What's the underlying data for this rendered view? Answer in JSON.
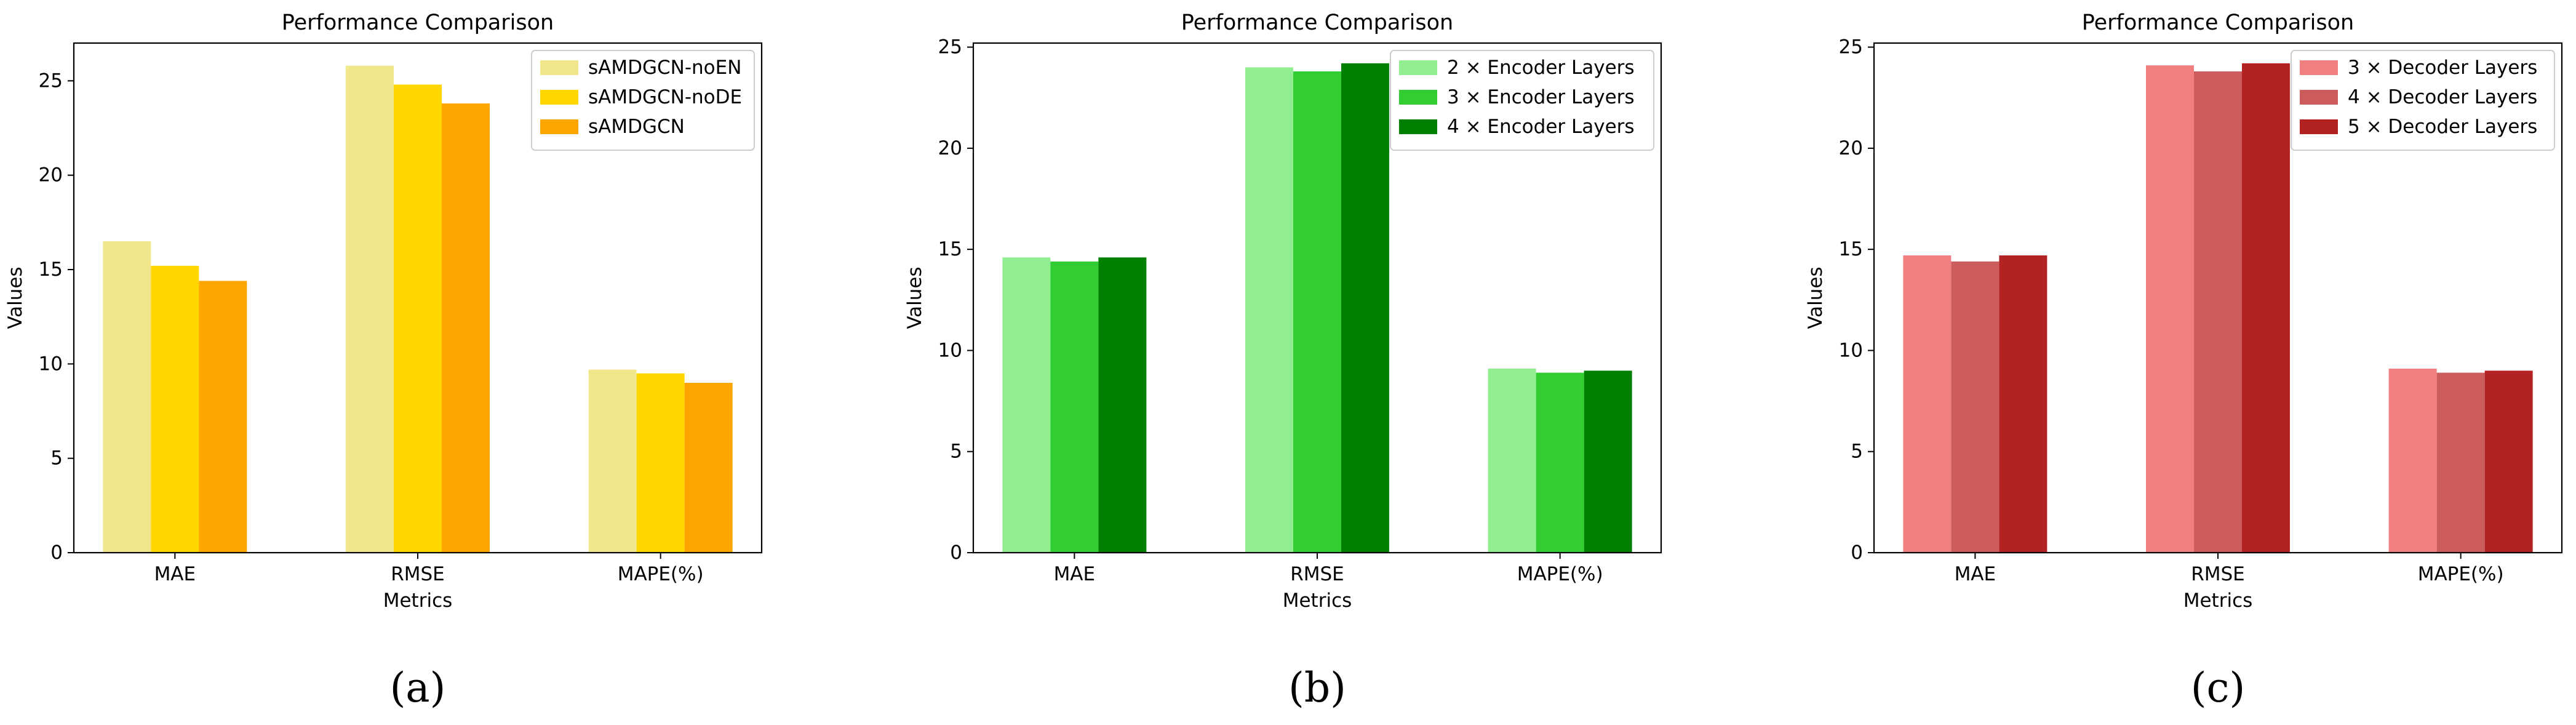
{
  "chart_data": [
    {
      "type": "bar",
      "panel_label": "(a)",
      "title": "Performance Comparison",
      "xlabel": "Metrics",
      "ylabel": "Values",
      "categories": [
        "MAE",
        "RMSE",
        "MAPE(%)"
      ],
      "ylim": [
        0,
        27
      ],
      "yticks": [
        0,
        5,
        10,
        15,
        20,
        25
      ],
      "grid": false,
      "legend_position": "top-right",
      "series": [
        {
          "name": "sAMDGCN-noEN",
          "color": "#F0E68C",
          "values": [
            16.5,
            25.8,
            9.7
          ]
        },
        {
          "name": "sAMDGCN-noDE",
          "color": "#FFD700",
          "values": [
            15.2,
            24.8,
            9.5
          ]
        },
        {
          "name": "sAMDGCN",
          "color": "#FFA500",
          "values": [
            14.4,
            23.8,
            9.0
          ]
        }
      ]
    },
    {
      "type": "bar",
      "panel_label": "(b)",
      "title": "Performance Comparison",
      "xlabel": "Metrics",
      "ylabel": "Values",
      "categories": [
        "MAE",
        "RMSE",
        "MAPE(%)"
      ],
      "ylim": [
        0,
        25.2
      ],
      "yticks": [
        0,
        5,
        10,
        15,
        20,
        25
      ],
      "grid": false,
      "legend_position": "top-right",
      "series": [
        {
          "name": "2 × Encoder Layers",
          "color": "#90EE90",
          "values": [
            14.6,
            24.0,
            9.1
          ]
        },
        {
          "name": "3 × Encoder Layers",
          "color": "#32CD32",
          "values": [
            14.4,
            23.8,
            8.9
          ]
        },
        {
          "name": "4 × Encoder Layers",
          "color": "#008000",
          "values": [
            14.6,
            24.2,
            9.0
          ]
        }
      ]
    },
    {
      "type": "bar",
      "panel_label": "(c)",
      "title": "Performance Comparison",
      "xlabel": "Metrics",
      "ylabel": "Values",
      "categories": [
        "MAE",
        "RMSE",
        "MAPE(%)"
      ],
      "ylim": [
        0,
        25.2
      ],
      "yticks": [
        0,
        5,
        10,
        15,
        20,
        25
      ],
      "grid": false,
      "legend_position": "top-right",
      "series": [
        {
          "name": "3 × Decoder Layers",
          "color": "#F08080",
          "values": [
            14.7,
            24.1,
            9.1
          ]
        },
        {
          "name": "4 × Decoder Layers",
          "color": "#CD5C5C",
          "values": [
            14.4,
            23.8,
            8.9
          ]
        },
        {
          "name": "5 × Decoder Layers",
          "color": "#B22222",
          "values": [
            14.7,
            24.2,
            9.0
          ]
        }
      ]
    }
  ]
}
